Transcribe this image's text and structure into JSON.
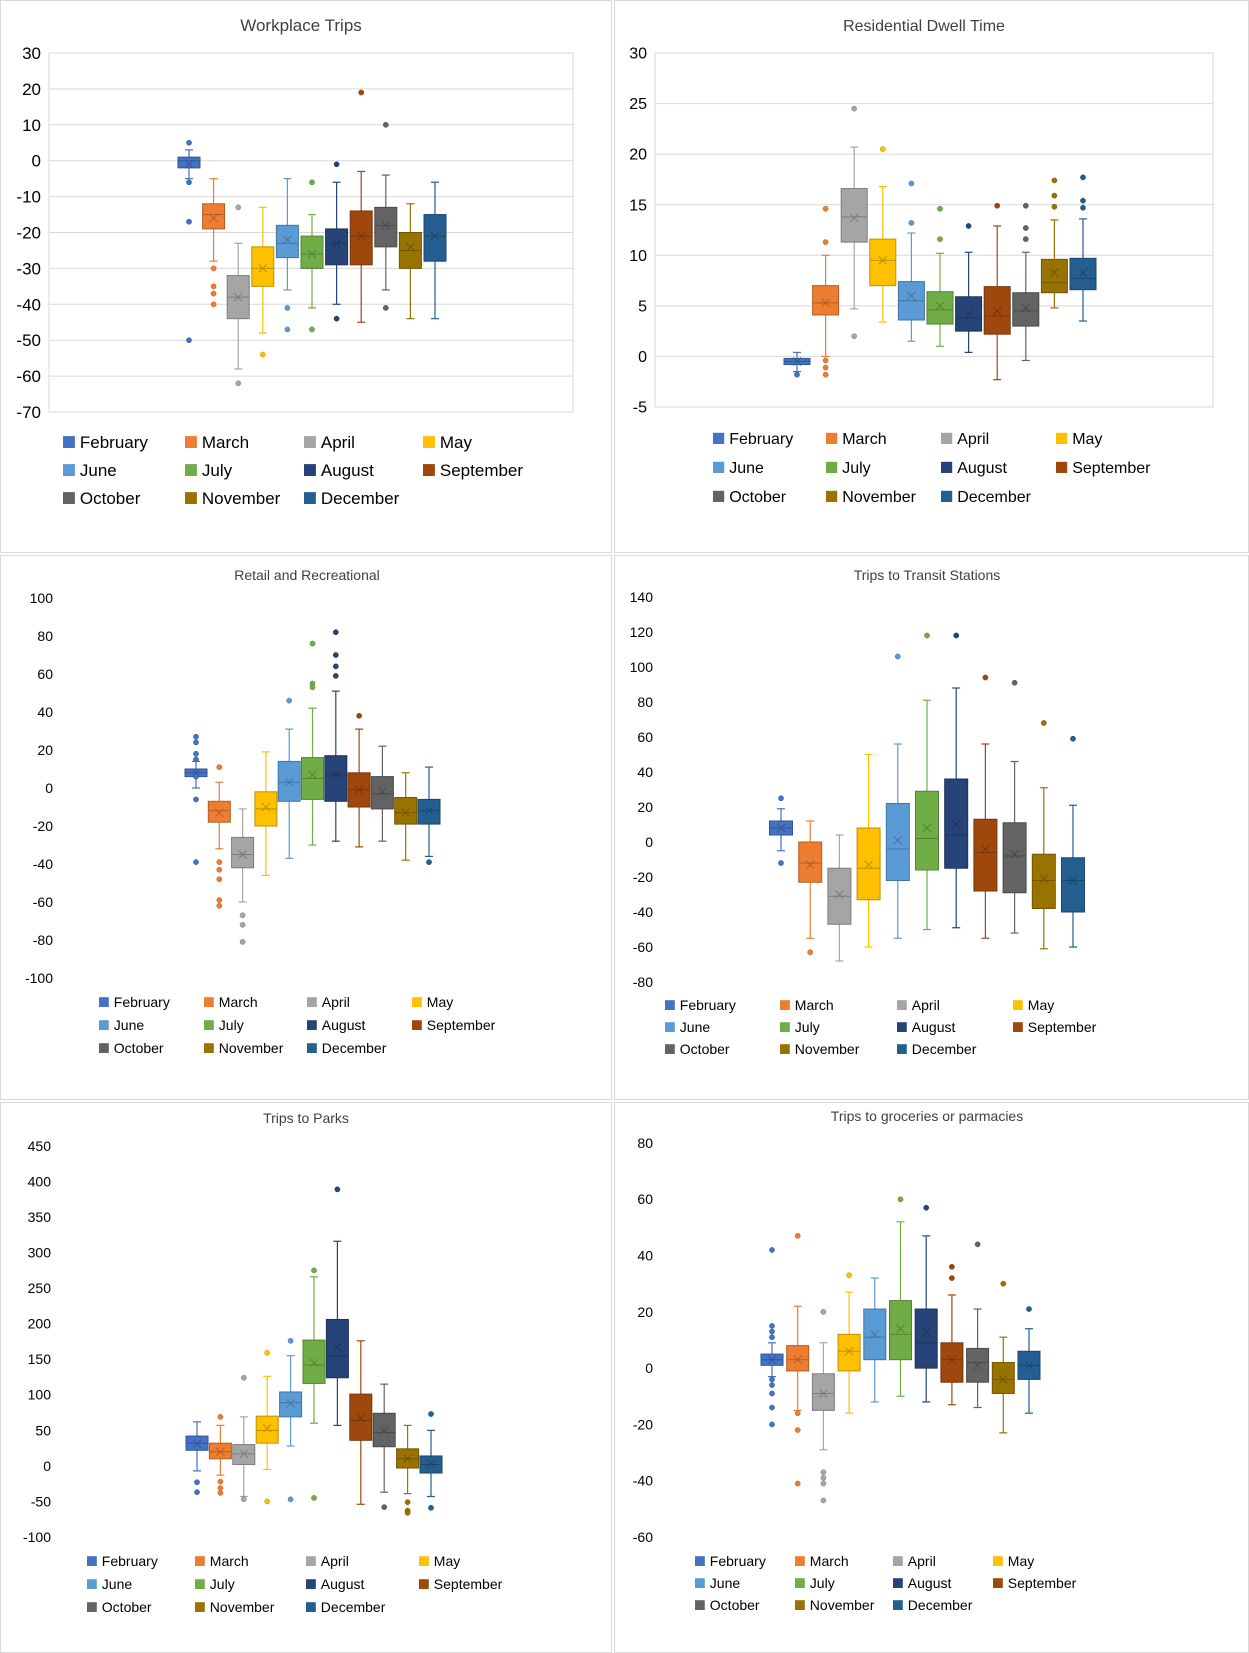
{
  "colors": {
    "February": "#4472c4",
    "March": "#ed7d31",
    "April": "#a5a5a5",
    "May": "#ffc000",
    "June": "#5b9bd5",
    "July": "#70ad47",
    "August": "#264478",
    "September": "#9e480e",
    "October": "#636363",
    "November": "#997300",
    "December": "#255e91"
  },
  "chart_data": [
    {
      "type": "boxplot",
      "title": "Workplace Trips",
      "ylim": [
        -70,
        30
      ],
      "yticks": [
        30,
        20,
        10,
        0,
        -10,
        -20,
        -30,
        -40,
        -50,
        -60,
        -70
      ],
      "grid": true,
      "legend": "bottom",
      "series": [
        {
          "name": "February",
          "whisker_low": -5,
          "q1": -2,
          "median": 0,
          "q3": 1,
          "whisker_high": 3,
          "mean": -1,
          "outliers": [
            5,
            -6,
            -17,
            -50
          ]
        },
        {
          "name": "March",
          "whisker_low": -28,
          "q1": -19,
          "median": -15,
          "q3": -12,
          "whisker_high": -5,
          "mean": -16,
          "outliers": [
            -30,
            -35,
            -37,
            -40
          ]
        },
        {
          "name": "April",
          "whisker_low": -58,
          "q1": -44,
          "median": -38,
          "q3": -32,
          "whisker_high": -23,
          "mean": -38,
          "outliers": [
            -13,
            -62
          ]
        },
        {
          "name": "May",
          "whisker_low": -48,
          "q1": -35,
          "median": -30,
          "q3": -24,
          "whisker_high": -13,
          "mean": -30,
          "outliers": [
            -54
          ]
        },
        {
          "name": "June",
          "whisker_low": -36,
          "q1": -27,
          "median": -23,
          "q3": -18,
          "whisker_high": -5,
          "mean": -22,
          "outliers": [
            -41,
            -47
          ]
        },
        {
          "name": "July",
          "whisker_low": -41,
          "q1": -30,
          "median": -26,
          "q3": -21,
          "whisker_high": -15,
          "mean": -26,
          "outliers": [
            -6,
            -47
          ]
        },
        {
          "name": "August",
          "whisker_low": -40,
          "q1": -29,
          "median": -23,
          "q3": -19,
          "whisker_high": -6,
          "mean": -23,
          "outliers": [
            -1,
            -44
          ]
        },
        {
          "name": "September",
          "whisker_low": -45,
          "q1": -29,
          "median": -21,
          "q3": -14,
          "whisker_high": -3,
          "mean": -21,
          "outliers": [
            19
          ]
        },
        {
          "name": "October",
          "whisker_low": -36,
          "q1": -24,
          "median": -18,
          "q3": -13,
          "whisker_high": -4,
          "mean": -18,
          "outliers": [
            10,
            -41
          ]
        },
        {
          "name": "November",
          "whisker_low": -44,
          "q1": -30,
          "median": -25,
          "q3": -20,
          "whisker_high": -12,
          "mean": -24,
          "outliers": []
        },
        {
          "name": "December",
          "whisker_low": -44,
          "q1": -28,
          "median": -21,
          "q3": -15,
          "whisker_high": -6,
          "mean": -21,
          "outliers": []
        }
      ]
    },
    {
      "type": "boxplot",
      "title": "Residential Dwell Time",
      "ylim": [
        -5,
        30
      ],
      "yticks": [
        30,
        25,
        20,
        15,
        10,
        5,
        0,
        -5
      ],
      "grid": true,
      "legend": "bottom",
      "series": [
        {
          "name": "February",
          "whisker_low": -1.5,
          "q1": -0.8,
          "median": -0.5,
          "q3": -0.2,
          "whisker_high": 0.4,
          "mean": -0.5,
          "outliers": [
            -1.8
          ]
        },
        {
          "name": "March",
          "whisker_low": 0,
          "q1": 4.1,
          "median": 5.3,
          "q3": 7.0,
          "whisker_high": 10,
          "mean": 5.3,
          "outliers": [
            14.6,
            11.3,
            -0.4,
            -1.1,
            -1.8
          ]
        },
        {
          "name": "April",
          "whisker_low": 4.7,
          "q1": 11.3,
          "median": 13.8,
          "q3": 16.6,
          "whisker_high": 20.7,
          "mean": 13.7,
          "outliers": [
            24.5,
            2.0
          ]
        },
        {
          "name": "May",
          "whisker_low": 3.4,
          "q1": 7.0,
          "median": 9.5,
          "q3": 11.6,
          "whisker_high": 16.8,
          "mean": 9.5,
          "outliers": [
            20.5
          ]
        },
        {
          "name": "June",
          "whisker_low": 1.5,
          "q1": 3.6,
          "median": 5.5,
          "q3": 7.4,
          "whisker_high": 12.2,
          "mean": 6.0,
          "outliers": [
            17.1,
            13.2
          ]
        },
        {
          "name": "July",
          "whisker_low": 1.0,
          "q1": 3.2,
          "median": 4.6,
          "q3": 6.4,
          "whisker_high": 10.2,
          "mean": 5.0,
          "outliers": [
            14.6,
            11.6
          ]
        },
        {
          "name": "August",
          "whisker_low": 0.4,
          "q1": 2.5,
          "median": 3.8,
          "q3": 5.9,
          "whisker_high": 10.3,
          "mean": 4.2,
          "outliers": [
            12.9
          ]
        },
        {
          "name": "September",
          "whisker_low": -2.3,
          "q1": 2.2,
          "median": 4.0,
          "q3": 6.9,
          "whisker_high": 12.9,
          "mean": 4.5,
          "outliers": [
            14.9
          ]
        },
        {
          "name": "October",
          "whisker_low": -0.4,
          "q1": 3.0,
          "median": 4.5,
          "q3": 6.3,
          "whisker_high": 10.3,
          "mean": 4.8,
          "outliers": [
            14.9,
            12.7,
            11.6
          ]
        },
        {
          "name": "November",
          "whisker_low": 4.8,
          "q1": 6.3,
          "median": 7.3,
          "q3": 9.6,
          "whisker_high": 13.5,
          "mean": 8.3,
          "outliers": [
            17.4,
            15.9,
            14.8
          ]
        },
        {
          "name": "December",
          "whisker_low": 3.5,
          "q1": 6.6,
          "median": 7.7,
          "q3": 9.7,
          "whisker_high": 13.6,
          "mean": 8.3,
          "outliers": [
            17.7,
            15.4,
            14.7
          ]
        }
      ]
    },
    {
      "type": "boxplot",
      "title": "Retail and Recreational",
      "ylim": [
        -100,
        100
      ],
      "yticks": [
        100,
        80,
        60,
        40,
        20,
        0,
        -20,
        -40,
        -60,
        -80,
        -100
      ],
      "grid": false,
      "legend": "bottom",
      "series": [
        {
          "name": "February",
          "whisker_low": 0,
          "q1": 6,
          "median": 8,
          "q3": 10,
          "whisker_high": 14,
          "mean": 8,
          "outliers": [
            27,
            24,
            18,
            15,
            6,
            -6,
            -39
          ]
        },
        {
          "name": "March",
          "whisker_low": -32,
          "q1": -18,
          "median": -12,
          "q3": -7,
          "whisker_high": 3,
          "mean": -13,
          "outliers": [
            11,
            -39,
            -43,
            -48,
            -59,
            -62
          ]
        },
        {
          "name": "April",
          "whisker_low": -60,
          "q1": -42,
          "median": -35,
          "q3": -26,
          "whisker_high": -11,
          "mean": -35,
          "outliers": [
            -67,
            -72,
            -81
          ]
        },
        {
          "name": "May",
          "whisker_low": -46,
          "q1": -20,
          "median": -11,
          "q3": -2,
          "whisker_high": 19,
          "mean": -10,
          "outliers": []
        },
        {
          "name": "June",
          "whisker_low": -37,
          "q1": -7,
          "median": 3,
          "q3": 14,
          "whisker_high": 31,
          "mean": 3,
          "outliers": [
            46
          ]
        },
        {
          "name": "July",
          "whisker_low": -30,
          "q1": -6,
          "median": 5,
          "q3": 16,
          "whisker_high": 42,
          "mean": 7,
          "outliers": [
            76,
            55,
            53
          ]
        },
        {
          "name": "August",
          "whisker_low": -28,
          "q1": -7,
          "median": 7,
          "q3": 17,
          "whisker_high": 51,
          "mean": 7,
          "outliers": [
            82,
            70,
            64,
            59
          ]
        },
        {
          "name": "September",
          "whisker_low": -31,
          "q1": -10,
          "median": -1,
          "q3": 8,
          "whisker_high": 31,
          "mean": -1,
          "outliers": [
            38
          ]
        },
        {
          "name": "October",
          "whisker_low": -28,
          "q1": -11,
          "median": -3,
          "q3": 6,
          "whisker_high": 22,
          "mean": -2,
          "outliers": []
        },
        {
          "name": "November",
          "whisker_low": -38,
          "q1": -19,
          "median": -13,
          "q3": -5,
          "whisker_high": 8,
          "mean": -13,
          "outliers": []
        },
        {
          "name": "December",
          "whisker_low": -36,
          "q1": -19,
          "median": -12,
          "q3": -6,
          "whisker_high": 11,
          "mean": -12,
          "outliers": [
            -39
          ]
        }
      ]
    },
    {
      "type": "boxplot",
      "title": "Trips to Transit Stations",
      "ylim": [
        -80,
        140
      ],
      "yticks": [
        140,
        120,
        100,
        80,
        60,
        40,
        20,
        0,
        -20,
        -40,
        -60,
        -80
      ],
      "grid": false,
      "legend": "bottom",
      "series": [
        {
          "name": "February",
          "whisker_low": -5,
          "q1": 4,
          "median": 8,
          "q3": 12,
          "whisker_high": 19,
          "mean": 8,
          "outliers": [
            25,
            -12
          ]
        },
        {
          "name": "March",
          "whisker_low": -55,
          "q1": -23,
          "median": -12,
          "q3": 0,
          "whisker_high": 12,
          "mean": -13,
          "outliers": [
            -63
          ]
        },
        {
          "name": "April",
          "whisker_low": -68,
          "q1": -47,
          "median": -31,
          "q3": -15,
          "whisker_high": 4,
          "mean": -30,
          "outliers": []
        },
        {
          "name": "May",
          "whisker_low": -60,
          "q1": -33,
          "median": -15,
          "q3": 8,
          "whisker_high": 50,
          "mean": -13,
          "outliers": []
        },
        {
          "name": "June",
          "whisker_low": -55,
          "q1": -22,
          "median": -4,
          "q3": 22,
          "whisker_high": 56,
          "mean": 1,
          "outliers": [
            106
          ]
        },
        {
          "name": "July",
          "whisker_low": -50,
          "q1": -16,
          "median": 2,
          "q3": 29,
          "whisker_high": 81,
          "mean": 8,
          "outliers": [
            118
          ]
        },
        {
          "name": "August",
          "whisker_low": -49,
          "q1": -15,
          "median": 4,
          "q3": 36,
          "whisker_high": 88,
          "mean": 10,
          "outliers": [
            118
          ]
        },
        {
          "name": "September",
          "whisker_low": -55,
          "q1": -28,
          "median": -6,
          "q3": 13,
          "whisker_high": 56,
          "mean": -4,
          "outliers": [
            94
          ]
        },
        {
          "name": "October",
          "whisker_low": -52,
          "q1": -29,
          "median": -8,
          "q3": 11,
          "whisker_high": 46,
          "mean": -7,
          "outliers": [
            91
          ]
        },
        {
          "name": "November",
          "whisker_low": -61,
          "q1": -38,
          "median": -22,
          "q3": -7,
          "whisker_high": 31,
          "mean": -21,
          "outliers": [
            68
          ]
        },
        {
          "name": "December",
          "whisker_low": -60,
          "q1": -40,
          "median": -22,
          "q3": -9,
          "whisker_high": 21,
          "mean": -22,
          "outliers": [
            59
          ]
        }
      ]
    },
    {
      "type": "boxplot",
      "title": "Trips to Parks",
      "ylim": [
        -100,
        450
      ],
      "yticks": [
        450,
        400,
        350,
        300,
        250,
        200,
        150,
        100,
        50,
        0,
        -50,
        -100
      ],
      "grid": false,
      "legend": "bottom",
      "series": [
        {
          "name": "February",
          "whisker_low": -7,
          "q1": 22,
          "median": 32,
          "q3": 42,
          "whisker_high": 62,
          "mean": 31,
          "outliers": [
            -23,
            -37
          ]
        },
        {
          "name": "March",
          "whisker_low": -13,
          "q1": 10,
          "median": 20,
          "q3": 32,
          "whisker_high": 57,
          "mean": 20,
          "outliers": [
            69,
            -22,
            -31,
            -38
          ]
        },
        {
          "name": "April",
          "whisker_low": -43,
          "q1": 2,
          "median": 17,
          "q3": 30,
          "whisker_high": 69,
          "mean": 17,
          "outliers": [
            124,
            -47
          ]
        },
        {
          "name": "May",
          "whisker_low": -5,
          "q1": 32,
          "median": 50,
          "q3": 70,
          "whisker_high": 126,
          "mean": 53,
          "outliers": [
            159,
            -50
          ]
        },
        {
          "name": "June",
          "whisker_low": 28,
          "q1": 69,
          "median": 89,
          "q3": 104,
          "whisker_high": 155,
          "mean": 88,
          "outliers": [
            176,
            -47
          ]
        },
        {
          "name": "July",
          "whisker_low": 60,
          "q1": 116,
          "median": 142,
          "q3": 177,
          "whisker_high": 266,
          "mean": 145,
          "outliers": [
            275,
            -45
          ]
        },
        {
          "name": "August",
          "whisker_low": 57,
          "q1": 124,
          "median": 155,
          "q3": 206,
          "whisker_high": 316,
          "mean": 167,
          "outliers": [
            389
          ]
        },
        {
          "name": "September",
          "whisker_low": -54,
          "q1": 36,
          "median": 64,
          "q3": 101,
          "whisker_high": 176,
          "mean": 67,
          "outliers": []
        },
        {
          "name": "October",
          "whisker_low": -37,
          "q1": 27,
          "median": 47,
          "q3": 74,
          "whisker_high": 115,
          "mean": 50,
          "outliers": [
            -58
          ]
        },
        {
          "name": "November",
          "whisker_low": -39,
          "q1": -3,
          "median": 10,
          "q3": 24,
          "whisker_high": 57,
          "mean": 10,
          "outliers": [
            -51,
            -63,
            -66
          ]
        },
        {
          "name": "December",
          "whisker_low": -43,
          "q1": -10,
          "median": 2,
          "q3": 14,
          "whisker_high": 50,
          "mean": 3,
          "outliers": [
            73,
            -59
          ]
        }
      ]
    },
    {
      "type": "boxplot",
      "title": "Trips to groceries or parmacies",
      "ylim": [
        -60,
        80
      ],
      "yticks": [
        80,
        60,
        40,
        20,
        0,
        -20,
        -40,
        -60
      ],
      "grid": false,
      "legend": "bottom",
      "series": [
        {
          "name": "February",
          "whisker_low": -3,
          "q1": 1,
          "median": 3,
          "q3": 5,
          "whisker_high": 9,
          "mean": 3,
          "outliers": [
            42,
            15,
            13,
            11,
            -4,
            -6,
            -9,
            -14,
            -20
          ]
        },
        {
          "name": "March",
          "whisker_low": -15,
          "q1": -1,
          "median": 3,
          "q3": 8,
          "whisker_high": 22,
          "mean": 3,
          "outliers": [
            47,
            -16,
            -22,
            -41
          ]
        },
        {
          "name": "April",
          "whisker_low": -29,
          "q1": -15,
          "median": -9,
          "q3": -2,
          "whisker_high": 9,
          "mean": -9,
          "outliers": [
            20,
            -37,
            -39,
            -41,
            -47
          ]
        },
        {
          "name": "May",
          "whisker_low": -16,
          "q1": -1,
          "median": 6,
          "q3": 12,
          "whisker_high": 27,
          "mean": 6,
          "outliers": [
            33
          ]
        },
        {
          "name": "June",
          "whisker_low": -12,
          "q1": 3,
          "median": 11,
          "q3": 21,
          "whisker_high": 32,
          "mean": 12,
          "outliers": []
        },
        {
          "name": "July",
          "whisker_low": -10,
          "q1": 3,
          "median": 12,
          "q3": 24,
          "whisker_high": 52,
          "mean": 14,
          "outliers": [
            60
          ]
        },
        {
          "name": "August",
          "whisker_low": -12,
          "q1": 0,
          "median": 9,
          "q3": 21,
          "whisker_high": 47,
          "mean": 13,
          "outliers": [
            57
          ]
        },
        {
          "name": "September",
          "whisker_low": -13,
          "q1": -5,
          "median": 3,
          "q3": 9,
          "whisker_high": 26,
          "mean": 3,
          "outliers": [
            36,
            32
          ]
        },
        {
          "name": "October",
          "whisker_low": -14,
          "q1": -5,
          "median": 2,
          "q3": 7,
          "whisker_high": 21,
          "mean": 1,
          "outliers": [
            44
          ]
        },
        {
          "name": "November",
          "whisker_low": -23,
          "q1": -9,
          "median": -4,
          "q3": 2,
          "whisker_high": 11,
          "mean": -4,
          "outliers": [
            30
          ]
        },
        {
          "name": "December",
          "whisker_low": -16,
          "q1": -4,
          "median": 1,
          "q3": 6,
          "whisker_high": 14,
          "mean": 1,
          "outliers": [
            21
          ]
        }
      ]
    }
  ]
}
